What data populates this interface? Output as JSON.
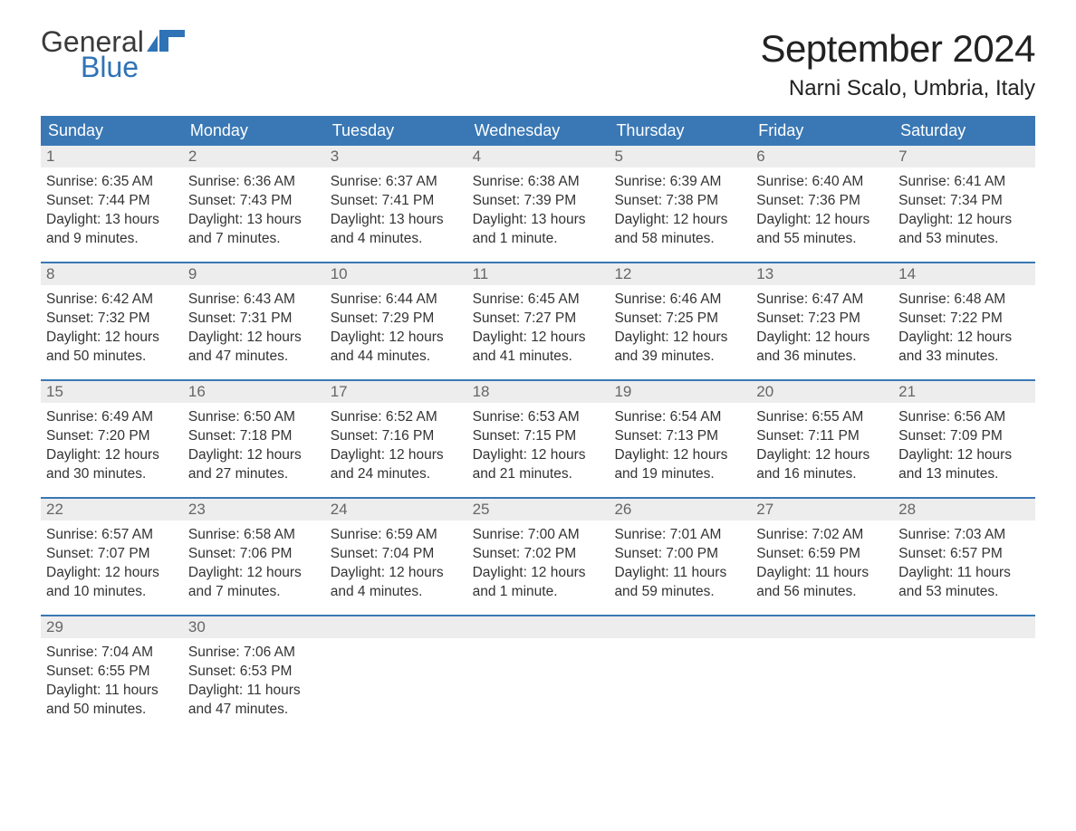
{
  "brand": {
    "word1": "General",
    "word2": "Blue",
    "text_color_1": "#3a3a3a",
    "text_color_2": "#2f73b6",
    "flag_color": "#2f73b6",
    "font_size": 32
  },
  "header": {
    "title": "September 2024",
    "location": "Narni Scalo, Umbria, Italy",
    "title_fontsize": 42,
    "location_fontsize": 24,
    "title_color": "#222222"
  },
  "calendar": {
    "header_bg": "#3a78b5",
    "header_text_color": "#ffffff",
    "week_border_color": "#3a78b5",
    "daynum_bg": "#ededed",
    "daynum_color": "#666666",
    "body_text_color": "#333333",
    "body_fontsize": 15.5,
    "daynum_fontsize": 17,
    "header_fontsize": 18,
    "columns": [
      "Sunday",
      "Monday",
      "Tuesday",
      "Wednesday",
      "Thursday",
      "Friday",
      "Saturday"
    ],
    "weeks": [
      [
        {
          "n": "1",
          "sunrise": "Sunrise: 6:35 AM",
          "sunset": "Sunset: 7:44 PM",
          "daylight": "Daylight: 13 hours and 9 minutes."
        },
        {
          "n": "2",
          "sunrise": "Sunrise: 6:36 AM",
          "sunset": "Sunset: 7:43 PM",
          "daylight": "Daylight: 13 hours and 7 minutes."
        },
        {
          "n": "3",
          "sunrise": "Sunrise: 6:37 AM",
          "sunset": "Sunset: 7:41 PM",
          "daylight": "Daylight: 13 hours and 4 minutes."
        },
        {
          "n": "4",
          "sunrise": "Sunrise: 6:38 AM",
          "sunset": "Sunset: 7:39 PM",
          "daylight": "Daylight: 13 hours and 1 minute."
        },
        {
          "n": "5",
          "sunrise": "Sunrise: 6:39 AM",
          "sunset": "Sunset: 7:38 PM",
          "daylight": "Daylight: 12 hours and 58 minutes."
        },
        {
          "n": "6",
          "sunrise": "Sunrise: 6:40 AM",
          "sunset": "Sunset: 7:36 PM",
          "daylight": "Daylight: 12 hours and 55 minutes."
        },
        {
          "n": "7",
          "sunrise": "Sunrise: 6:41 AM",
          "sunset": "Sunset: 7:34 PM",
          "daylight": "Daylight: 12 hours and 53 minutes."
        }
      ],
      [
        {
          "n": "8",
          "sunrise": "Sunrise: 6:42 AM",
          "sunset": "Sunset: 7:32 PM",
          "daylight": "Daylight: 12 hours and 50 minutes."
        },
        {
          "n": "9",
          "sunrise": "Sunrise: 6:43 AM",
          "sunset": "Sunset: 7:31 PM",
          "daylight": "Daylight: 12 hours and 47 minutes."
        },
        {
          "n": "10",
          "sunrise": "Sunrise: 6:44 AM",
          "sunset": "Sunset: 7:29 PM",
          "daylight": "Daylight: 12 hours and 44 minutes."
        },
        {
          "n": "11",
          "sunrise": "Sunrise: 6:45 AM",
          "sunset": "Sunset: 7:27 PM",
          "daylight": "Daylight: 12 hours and 41 minutes."
        },
        {
          "n": "12",
          "sunrise": "Sunrise: 6:46 AM",
          "sunset": "Sunset: 7:25 PM",
          "daylight": "Daylight: 12 hours and 39 minutes."
        },
        {
          "n": "13",
          "sunrise": "Sunrise: 6:47 AM",
          "sunset": "Sunset: 7:23 PM",
          "daylight": "Daylight: 12 hours and 36 minutes."
        },
        {
          "n": "14",
          "sunrise": "Sunrise: 6:48 AM",
          "sunset": "Sunset: 7:22 PM",
          "daylight": "Daylight: 12 hours and 33 minutes."
        }
      ],
      [
        {
          "n": "15",
          "sunrise": "Sunrise: 6:49 AM",
          "sunset": "Sunset: 7:20 PM",
          "daylight": "Daylight: 12 hours and 30 minutes."
        },
        {
          "n": "16",
          "sunrise": "Sunrise: 6:50 AM",
          "sunset": "Sunset: 7:18 PM",
          "daylight": "Daylight: 12 hours and 27 minutes."
        },
        {
          "n": "17",
          "sunrise": "Sunrise: 6:52 AM",
          "sunset": "Sunset: 7:16 PM",
          "daylight": "Daylight: 12 hours and 24 minutes."
        },
        {
          "n": "18",
          "sunrise": "Sunrise: 6:53 AM",
          "sunset": "Sunset: 7:15 PM",
          "daylight": "Daylight: 12 hours and 21 minutes."
        },
        {
          "n": "19",
          "sunrise": "Sunrise: 6:54 AM",
          "sunset": "Sunset: 7:13 PM",
          "daylight": "Daylight: 12 hours and 19 minutes."
        },
        {
          "n": "20",
          "sunrise": "Sunrise: 6:55 AM",
          "sunset": "Sunset: 7:11 PM",
          "daylight": "Daylight: 12 hours and 16 minutes."
        },
        {
          "n": "21",
          "sunrise": "Sunrise: 6:56 AM",
          "sunset": "Sunset: 7:09 PM",
          "daylight": "Daylight: 12 hours and 13 minutes."
        }
      ],
      [
        {
          "n": "22",
          "sunrise": "Sunrise: 6:57 AM",
          "sunset": "Sunset: 7:07 PM",
          "daylight": "Daylight: 12 hours and 10 minutes."
        },
        {
          "n": "23",
          "sunrise": "Sunrise: 6:58 AM",
          "sunset": "Sunset: 7:06 PM",
          "daylight": "Daylight: 12 hours and 7 minutes."
        },
        {
          "n": "24",
          "sunrise": "Sunrise: 6:59 AM",
          "sunset": "Sunset: 7:04 PM",
          "daylight": "Daylight: 12 hours and 4 minutes."
        },
        {
          "n": "25",
          "sunrise": "Sunrise: 7:00 AM",
          "sunset": "Sunset: 7:02 PM",
          "daylight": "Daylight: 12 hours and 1 minute."
        },
        {
          "n": "26",
          "sunrise": "Sunrise: 7:01 AM",
          "sunset": "Sunset: 7:00 PM",
          "daylight": "Daylight: 11 hours and 59 minutes."
        },
        {
          "n": "27",
          "sunrise": "Sunrise: 7:02 AM",
          "sunset": "Sunset: 6:59 PM",
          "daylight": "Daylight: 11 hours and 56 minutes."
        },
        {
          "n": "28",
          "sunrise": "Sunrise: 7:03 AM",
          "sunset": "Sunset: 6:57 PM",
          "daylight": "Daylight: 11 hours and 53 minutes."
        }
      ],
      [
        {
          "n": "29",
          "sunrise": "Sunrise: 7:04 AM",
          "sunset": "Sunset: 6:55 PM",
          "daylight": "Daylight: 11 hours and 50 minutes."
        },
        {
          "n": "30",
          "sunrise": "Sunrise: 7:06 AM",
          "sunset": "Sunset: 6:53 PM",
          "daylight": "Daylight: 11 hours and 47 minutes."
        },
        {
          "empty": true
        },
        {
          "empty": true
        },
        {
          "empty": true
        },
        {
          "empty": true
        },
        {
          "empty": true
        }
      ]
    ]
  }
}
